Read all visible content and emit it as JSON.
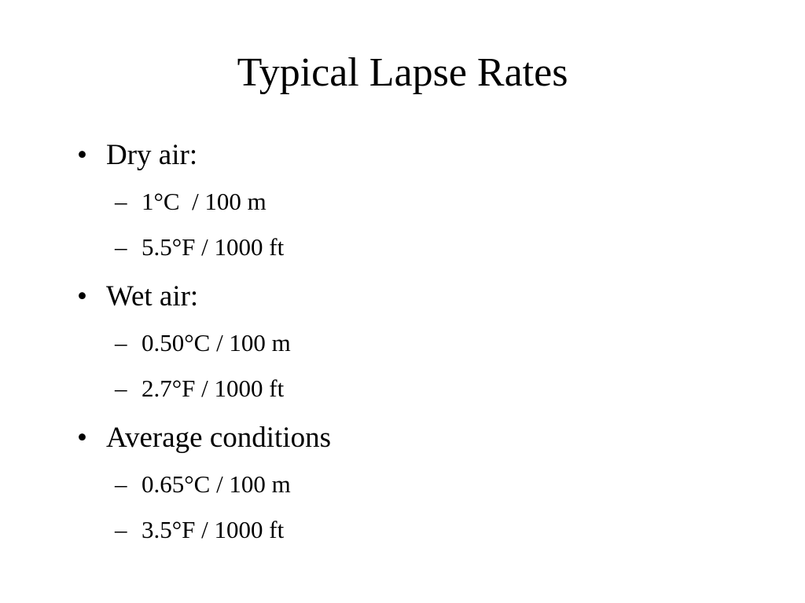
{
  "title": "Typical Lapse Rates",
  "items": [
    {
      "text": "Dry air:",
      "subitems": [
        "1°C  / 100 m",
        "5.5°F / 1000 ft"
      ]
    },
    {
      "text": "Wet air:",
      "subitems": [
        "0.50°C / 100 m",
        "2.7°F / 1000 ft"
      ]
    },
    {
      "text": "Average conditions",
      "subitems": [
        "0.65°C / 100 m",
        "3.5°F / 1000 ft"
      ]
    }
  ]
}
